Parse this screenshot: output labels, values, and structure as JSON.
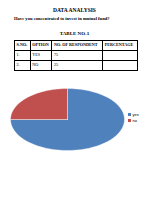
{
  "document": {
    "header": {
      "title": "DATA ANALYSIS",
      "question": "Have you concentrated to invest in mutual fund?"
    },
    "table": {
      "title": "TABLE NO-1",
      "columns": [
        "S.NO.",
        "OPTION",
        "NO. OF RESPONDENT",
        "PERCENTAGE"
      ],
      "rows": [
        [
          "1.",
          "YES",
          "75",
          null
        ],
        [
          "2.",
          "NO",
          "25",
          null
        ]
      ]
    }
  },
  "chart_data": {
    "type": "pie",
    "categories": [
      "yes",
      "no"
    ],
    "values": [
      75,
      25
    ],
    "colors": [
      "#4f81bd",
      "#c0504d"
    ],
    "legend": "right"
  }
}
